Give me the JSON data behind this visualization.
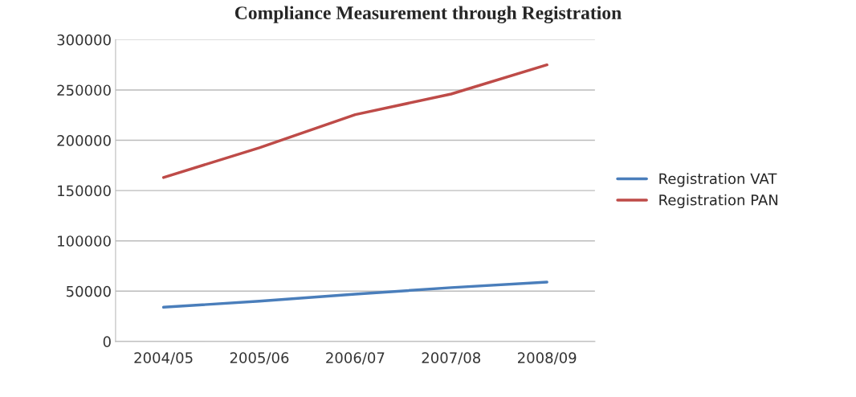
{
  "chart_data": {
    "type": "line",
    "title": "Compliance Measurement through Registration",
    "categories": [
      "2004/05",
      "2005/06",
      "2006/07",
      "2007/08",
      "2008/09"
    ],
    "series": [
      {
        "name": "Registration VAT",
        "color": "#4a7ebb",
        "values": [
          34000,
          40000,
          47000,
          53500,
          59000
        ]
      },
      {
        "name": "Registration PAN",
        "color": "#be4b48",
        "values": [
          163000,
          192500,
          225500,
          246000,
          275000
        ]
      }
    ],
    "ylim": [
      0,
      300000
    ],
    "yticks": [
      0,
      50000,
      100000,
      150000,
      200000,
      250000,
      300000
    ],
    "grid": "y",
    "legend": "right",
    "marker": "none",
    "line_style": "solid"
  }
}
